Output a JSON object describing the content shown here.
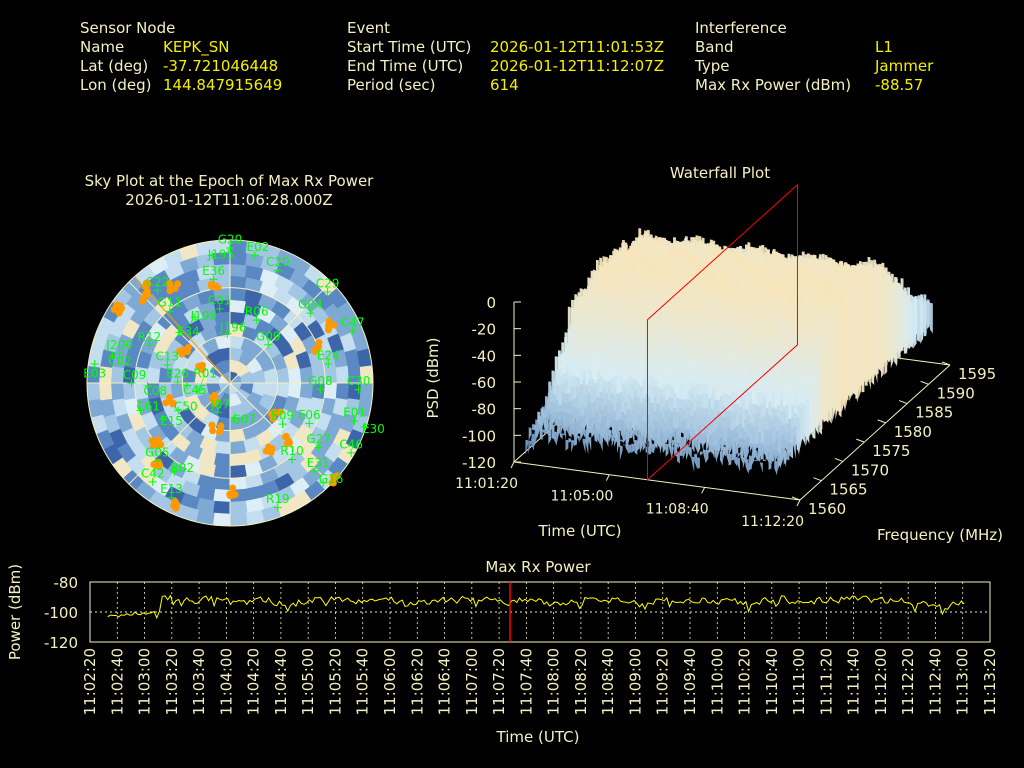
{
  "header": {
    "sensor": {
      "title": "Sensor Node",
      "rows": [
        {
          "label": "Name",
          "value": "KEPK_SN"
        },
        {
          "label": "Lat (deg)",
          "value": "-37.721046448"
        },
        {
          "label": "Lon (deg)",
          "value": "144.847915649"
        }
      ]
    },
    "event": {
      "title": "Event",
      "rows": [
        {
          "label": "Start Time (UTC)",
          "value": "2026-01-12T11:01:53Z"
        },
        {
          "label": "End Time (UTC)",
          "value": "2026-01-12T11:12:07Z"
        },
        {
          "label": "Period (sec)",
          "value": "614"
        }
      ]
    },
    "interference": {
      "title": "Interference",
      "rows": [
        {
          "label": "Band",
          "value": "L1"
        },
        {
          "label": "Type",
          "value": "Jammer"
        },
        {
          "label": "Max Rx Power (dBm)",
          "value": "-88.57"
        }
      ]
    }
  },
  "colors": {
    "text": "#f5f0c0",
    "value": "#f4f000",
    "satellite": "#00ff00",
    "detection": "#ff9900",
    "marker": "#ff0000",
    "trace": "#ffff00"
  },
  "chart_data": [
    {
      "type": "scatter",
      "subtype": "polar-sky-plot",
      "title": "Sky Plot at the Epoch of Max Rx Power",
      "subtitle": "2026-01-12T11:06:28.000Z",
      "elevation_rings_deg": [
        0,
        30,
        60
      ],
      "satellites": [
        {
          "id": "G20",
          "az": 0,
          "el": 5
        },
        {
          "id": "J195",
          "az": 352,
          "el": 9
        },
        {
          "id": "E02",
          "az": 11,
          "el": 8
        },
        {
          "id": "C20",
          "az": 23,
          "el": 13
        },
        {
          "id": "E36",
          "az": 351,
          "el": 24
        },
        {
          "id": "C22",
          "az": 322,
          "el": 16
        },
        {
          "id": "C29",
          "az": 47,
          "el": 6
        },
        {
          "id": "G04",
          "az": 49,
          "el": 23
        },
        {
          "id": "C47",
          "az": 67,
          "el": 6
        },
        {
          "id": "G11",
          "az": 320,
          "el": 31
        },
        {
          "id": "C01",
          "az": 352,
          "el": 43
        },
        {
          "id": "J199",
          "az": 332,
          "el": 43
        },
        {
          "id": "R06",
          "az": 23,
          "el": 47
        },
        {
          "id": "J196",
          "az": 357,
          "el": 59
        },
        {
          "id": "G09",
          "az": 45,
          "el": 56
        },
        {
          "id": "R12",
          "az": 295,
          "el": 34
        },
        {
          "id": "E34",
          "az": 315,
          "el": 45
        },
        {
          "id": "J200",
          "az": 285,
          "el": 18
        },
        {
          "id": "C02",
          "az": 283,
          "el": 14
        },
        {
          "id": "E03",
          "az": 278,
          "el": 4
        },
        {
          "id": "C13",
          "az": 286,
          "el": 49
        },
        {
          "id": "E26",
          "az": 271,
          "el": 57
        },
        {
          "id": "C45",
          "az": 267,
          "el": 63
        },
        {
          "id": "C09",
          "az": 270,
          "el": 28
        },
        {
          "id": "C08",
          "az": 268,
          "el": 38
        },
        {
          "id": "R01",
          "az": 257,
          "el": 70
        },
        {
          "id": "C61",
          "az": 253,
          "el": 31
        },
        {
          "id": "C50",
          "az": 242,
          "el": 53
        },
        {
          "id": "E15",
          "az": 242,
          "el": 42
        },
        {
          "id": "J07",
          "az": 203,
          "el": 70
        },
        {
          "id": "G07",
          "az": 172,
          "el": 68
        },
        {
          "id": "E09",
          "az": 128,
          "el": 48
        },
        {
          "id": "E06",
          "az": 117,
          "el": 34
        },
        {
          "id": "G08",
          "az": 94,
          "el": 33
        },
        {
          "id": "E24",
          "az": 79,
          "el": 27
        },
        {
          "id": "C30",
          "az": 93,
          "el": 9
        },
        {
          "id": "E01",
          "az": 107,
          "el": 8
        },
        {
          "id": "E30",
          "az": 108,
          "el": 1
        },
        {
          "id": "G27",
          "az": 126,
          "el": 21
        },
        {
          "id": "C46",
          "az": 120,
          "el": 2
        },
        {
          "id": "R10",
          "az": 141,
          "el": 28
        },
        {
          "id": "E31",
          "az": 136,
          "el": 13
        },
        {
          "id": "G16",
          "az": 137,
          "el": 4
        },
        {
          "id": "R19",
          "az": 159,
          "el": 6
        },
        {
          "id": "G05",
          "az": 223,
          "el": 23
        },
        {
          "id": "R02",
          "az": 212,
          "el": 24
        },
        {
          "id": "C42",
          "az": 218,
          "el": 11
        },
        {
          "id": "E13",
          "az": 207,
          "el": 9
        }
      ],
      "detections": [
        {
          "az": 315,
          "el": 15
        },
        {
          "az": 330,
          "el": 20
        },
        {
          "az": 318,
          "el": 8
        },
        {
          "az": 303,
          "el": 5
        },
        {
          "az": 350,
          "el": 28
        },
        {
          "az": 305,
          "el": 55
        },
        {
          "az": 300,
          "el": 70
        },
        {
          "az": 68,
          "el": 30
        },
        {
          "az": 60,
          "el": 18
        },
        {
          "az": 125,
          "el": 55
        },
        {
          "az": 135,
          "el": 40
        },
        {
          "az": 148,
          "el": 42
        },
        {
          "az": 230,
          "el": 75
        },
        {
          "az": 196,
          "el": 60
        },
        {
          "az": 230,
          "el": 30
        },
        {
          "az": 222,
          "el": 20
        },
        {
          "az": 178,
          "el": 22
        },
        {
          "az": 205,
          "el": 5
        },
        {
          "az": 133,
          "el": 1
        },
        {
          "az": 255,
          "el": 50
        }
      ]
    },
    {
      "type": "surface",
      "subtype": "waterfall-3d",
      "title": "Waterfall Plot",
      "xlabel": "Time (UTC)",
      "ylabel": "Frequency (MHz)",
      "zlabel": "PSD (dBm)",
      "zlim": [
        -120,
        0
      ],
      "z_ticks": [
        "0",
        "-20",
        "-40",
        "-60",
        "-80",
        "-100",
        "-120"
      ],
      "ylim": [
        1560,
        1595
      ],
      "y_ticks": [
        "1560",
        "1565",
        "1570",
        "1575",
        "1580",
        "1585",
        "1590",
        "1595"
      ],
      "time_range": [
        "11:01:20",
        "11:12:20"
      ],
      "marker_time": "11:06:28",
      "frequencies_mhz": [
        1560,
        1565,
        1570,
        1575,
        1580,
        1585,
        1590,
        1595
      ],
      "psd_profile_dbm": [
        -92,
        -70,
        -25,
        -12,
        -14,
        -20,
        -55,
        -78
      ]
    },
    {
      "type": "line",
      "title": "Max Rx Power",
      "xlabel": "Time (UTC)",
      "ylabel": "Power (dBm)",
      "ylim": [
        -120,
        -80
      ],
      "y_ticks": [
        "-80",
        "-100",
        "-120"
      ],
      "xlim": [
        "11:01:20",
        "11:12:20"
      ],
      "x_tick_step_sec": 20,
      "grid": true,
      "marker_time": "11:06:28",
      "series_start": "11:01:33",
      "series_step_sec": 10,
      "values": [
        -103,
        -102,
        -101,
        -100,
        -91,
        -92,
        -93,
        -91,
        -92,
        -94,
        -93,
        -92,
        -94,
        -95,
        -93,
        -92,
        -91,
        -92,
        -93,
        -92,
        -92,
        -93,
        -94,
        -93,
        -92,
        -92,
        -91,
        -91,
        -93,
        -94,
        -92,
        -93,
        -95,
        -94,
        -92,
        -91,
        -93,
        -92,
        -94,
        -96,
        -93,
        -92,
        -93,
        -92,
        -94,
        -92,
        -93,
        -95,
        -92,
        -91,
        -93,
        -94,
        -92,
        -92,
        -91,
        -91,
        -92,
        -93,
        -92,
        -94,
        -95,
        -97,
        -94
      ]
    }
  ]
}
